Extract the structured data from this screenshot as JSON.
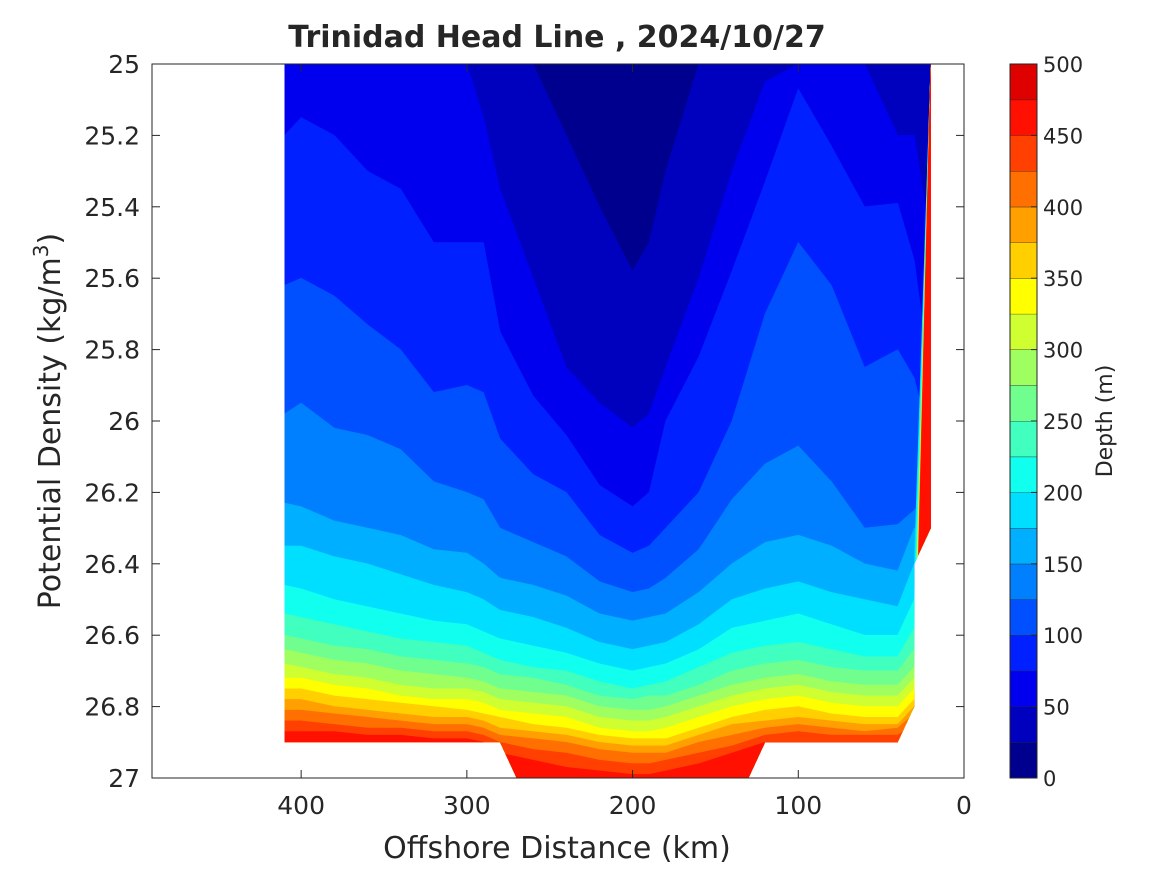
{
  "chart_data": {
    "type": "contour",
    "title": "Trinidad Head Line , 2024/10/27",
    "xlabel": "Offshore Distance (km)",
    "ylabel": "Potential Density (kg/m",
    "ylabel_superscript": "3",
    "ylabel_close": ")",
    "xlim": [
      490,
      0
    ],
    "ylim": [
      27,
      25
    ],
    "x_reversed": true,
    "y_reversed": true,
    "xticks": [
      "400",
      "300",
      "200",
      "100",
      "0"
    ],
    "xtick_values": [
      400,
      300,
      200,
      100,
      0
    ],
    "yticks": [
      "25",
      "25.2",
      "25.4",
      "25.6",
      "25.8",
      "26",
      "26.2",
      "26.4",
      "26.6",
      "26.8",
      "27"
    ],
    "ytick_values": [
      25,
      25.2,
      25.4,
      25.6,
      25.8,
      26,
      26.2,
      26.4,
      26.6,
      26.8,
      27
    ],
    "grid": false,
    "colorbar": {
      "label": "Depth (m)",
      "ticks": [
        "0",
        "50",
        "100",
        "150",
        "200",
        "250",
        "300",
        "350",
        "400",
        "450",
        "500"
      ],
      "tick_values": [
        0,
        50,
        100,
        150,
        200,
        250,
        300,
        350,
        400,
        450,
        500
      ],
      "levels": [
        0,
        25,
        50,
        75,
        100,
        125,
        150,
        175,
        200,
        225,
        250,
        275,
        300,
        325,
        350,
        375,
        400,
        425,
        450,
        475,
        500
      ],
      "colors": [
        "#00008f",
        "#0000bf",
        "#0000ef",
        "#0020ff",
        "#0050ff",
        "#0080ff",
        "#00afff",
        "#00dfff",
        "#10ffef",
        "#40ffbf",
        "#70ff8f",
        "#9fff60",
        "#cfff30",
        "#ffff00",
        "#ffcf00",
        "#ff9f00",
        "#ff7000",
        "#ff4000",
        "#ff1000",
        "#df0000"
      ]
    },
    "contour_lines": {
      "x": [
        410,
        400,
        380,
        360,
        340,
        320,
        300,
        290,
        280,
        260,
        240,
        220,
        200,
        190,
        180,
        160,
        140,
        120,
        100,
        80,
        60,
        40,
        30,
        20
      ],
      "series": [
        {
          "level": 25,
          "y": [
            25.0,
            25.0,
            25.0,
            25.0,
            25.0,
            25.0,
            25.0,
            25.0,
            25.0,
            25.0,
            25.0,
            25.0,
            25.0,
            25.0,
            25.0,
            25.0,
            25.0,
            25.0,
            25.0,
            25.0,
            25.0,
            25.0,
            25.0,
            25.0
          ]
        },
        {
          "level": 50,
          "y": [
            null,
            null,
            null,
            null,
            null,
            null,
            null,
            null,
            25.0,
            25.0,
            25.2,
            25.4,
            25.58,
            25.5,
            25.3,
            25.0,
            null,
            null,
            null,
            null,
            null,
            null,
            25.0,
            25.0
          ]
        },
        {
          "level": 75,
          "y": [
            null,
            null,
            null,
            null,
            null,
            null,
            25.0,
            25.15,
            25.35,
            25.6,
            25.85,
            25.95,
            26.02,
            25.98,
            25.85,
            25.6,
            25.3,
            25.05,
            null,
            null,
            null,
            25.2,
            25.2,
            25.5
          ]
        },
        {
          "level": 100,
          "y": [
            25.2,
            25.15,
            25.2,
            25.3,
            25.35,
            25.5,
            25.5,
            25.5,
            25.75,
            25.93,
            26.04,
            26.18,
            26.24,
            26.2,
            26.0,
            25.82,
            25.58,
            25.33,
            25.07,
            25.23,
            25.4,
            25.39,
            25.55,
            25.9
          ]
        },
        {
          "level": 125,
          "y": [
            25.62,
            25.6,
            25.65,
            25.73,
            25.8,
            25.92,
            25.9,
            25.92,
            26.05,
            26.15,
            26.2,
            26.32,
            26.37,
            26.35,
            26.3,
            26.2,
            26.0,
            25.7,
            25.5,
            25.62,
            25.85,
            25.8,
            25.88,
            26.07
          ]
        },
        {
          "level": 150,
          "y": [
            25.98,
            25.95,
            26.02,
            26.04,
            26.08,
            26.17,
            26.2,
            26.22,
            26.3,
            26.34,
            26.38,
            26.45,
            26.48,
            26.47,
            26.44,
            26.36,
            26.22,
            26.12,
            26.07,
            26.17,
            26.3,
            26.29,
            26.25,
            26.2
          ]
        },
        {
          "level": 175,
          "y": [
            26.23,
            26.24,
            26.28,
            26.3,
            26.32,
            26.36,
            26.37,
            26.4,
            26.44,
            26.46,
            26.49,
            26.54,
            26.56,
            26.55,
            26.54,
            26.48,
            26.4,
            26.34,
            26.32,
            26.35,
            26.4,
            26.42,
            26.3,
            26.3
          ]
        },
        {
          "level": 200,
          "y": [
            26.35,
            26.35,
            26.38,
            26.4,
            26.43,
            26.46,
            26.48,
            26.5,
            26.53,
            26.55,
            26.58,
            26.62,
            26.64,
            26.63,
            26.62,
            26.57,
            26.5,
            26.47,
            26.45,
            26.48,
            26.5,
            26.52,
            26.4,
            null
          ]
        },
        {
          "level": 225,
          "y": [
            26.46,
            26.47,
            26.5,
            26.52,
            26.54,
            26.56,
            26.57,
            26.59,
            26.61,
            26.63,
            26.65,
            26.68,
            26.7,
            26.69,
            26.68,
            26.64,
            26.58,
            26.56,
            26.54,
            26.57,
            26.6,
            26.6,
            26.5,
            null
          ]
        },
        {
          "level": 250,
          "y": [
            26.54,
            26.55,
            26.57,
            26.59,
            26.61,
            26.62,
            26.63,
            26.65,
            26.67,
            26.69,
            26.7,
            26.73,
            26.75,
            26.74,
            26.73,
            26.69,
            26.65,
            26.63,
            26.62,
            26.64,
            26.66,
            26.66,
            26.58,
            null
          ]
        },
        {
          "level": 275,
          "y": [
            26.6,
            26.61,
            26.63,
            26.64,
            26.66,
            26.67,
            26.68,
            26.69,
            26.71,
            26.72,
            26.74,
            26.77,
            26.78,
            26.77,
            26.77,
            26.74,
            26.7,
            26.68,
            26.67,
            26.69,
            26.7,
            26.7,
            26.64,
            null
          ]
        },
        {
          "level": 300,
          "y": [
            26.64,
            26.65,
            26.67,
            26.68,
            26.7,
            26.71,
            26.72,
            26.73,
            26.75,
            26.76,
            26.77,
            26.8,
            26.81,
            26.81,
            26.8,
            26.77,
            26.74,
            26.72,
            26.71,
            26.73,
            26.74,
            26.74,
            26.69,
            null
          ]
        },
        {
          "level": 325,
          "y": [
            26.68,
            26.69,
            26.71,
            26.72,
            26.74,
            26.75,
            26.75,
            26.76,
            26.78,
            26.79,
            26.8,
            26.83,
            26.84,
            26.84,
            26.83,
            26.8,
            26.77,
            26.75,
            26.74,
            26.76,
            26.77,
            26.77,
            26.72,
            null
          ]
        },
        {
          "level": 350,
          "y": [
            26.72,
            26.72,
            26.74,
            26.75,
            26.77,
            26.78,
            26.78,
            26.79,
            26.81,
            26.82,
            26.83,
            26.86,
            26.87,
            26.87,
            26.86,
            26.83,
            26.8,
            26.78,
            26.77,
            26.79,
            26.8,
            26.8,
            26.75,
            null
          ]
        },
        {
          "level": 375,
          "y": [
            26.75,
            26.75,
            26.77,
            26.78,
            26.79,
            26.8,
            26.81,
            26.82,
            26.83,
            26.85,
            26.86,
            26.88,
            26.89,
            26.89,
            26.89,
            26.86,
            26.83,
            26.81,
            26.8,
            26.82,
            26.83,
            26.83,
            26.78,
            null
          ]
        },
        {
          "level": 400,
          "y": [
            26.78,
            26.78,
            26.8,
            26.81,
            26.82,
            26.83,
            26.83,
            26.84,
            26.86,
            26.87,
            26.88,
            26.9,
            26.91,
            26.91,
            26.91,
            26.88,
            26.85,
            26.84,
            26.83,
            26.84,
            26.85,
            26.85,
            26.8,
            null
          ]
        },
        {
          "level": 425,
          "y": [
            26.81,
            26.81,
            26.82,
            26.83,
            26.84,
            26.85,
            26.85,
            26.86,
            26.88,
            26.89,
            26.9,
            26.92,
            26.93,
            26.93,
            26.93,
            26.9,
            26.88,
            26.86,
            26.85,
            26.86,
            26.87,
            26.86,
            26.82,
            null
          ]
        },
        {
          "level": 450,
          "y": [
            26.84,
            26.84,
            26.85,
            26.86,
            26.86,
            26.87,
            26.87,
            26.88,
            26.9,
            26.92,
            26.93,
            26.95,
            26.96,
            26.96,
            26.95,
            26.93,
            26.91,
            26.88,
            26.87,
            26.88,
            26.88,
            26.88,
            26.85,
            null
          ]
        },
        {
          "level": 475,
          "y": [
            26.87,
            26.87,
            26.87,
            26.88,
            26.88,
            26.89,
            26.89,
            26.9,
            26.93,
            26.95,
            26.97,
            26.98,
            26.99,
            26.99,
            26.98,
            26.96,
            26.93,
            26.9,
            26.9,
            26.9,
            26.9,
            26.9,
            26.87,
            null
          ]
        }
      ]
    },
    "data_region": {
      "x": [
        410,
        410,
        280,
        270,
        130,
        120,
        40,
        30,
        30,
        20,
        20
      ],
      "y": [
        25.0,
        26.9,
        26.9,
        27.0,
        27.0,
        26.9,
        26.9,
        26.8,
        26.4,
        26.3,
        25.0
      ]
    }
  }
}
